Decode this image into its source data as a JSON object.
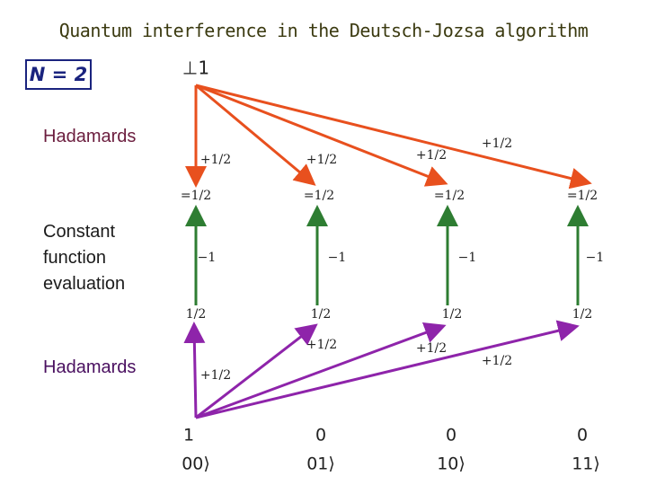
{
  "title": "Quantum interference in the Deutsch-Jozsa algorithm",
  "system_size": "N = 2",
  "top_amplitude": "⊥1",
  "stage_labels": [
    "Hadamards",
    "Constant function evaluation",
    "Hadamards"
  ],
  "upper_weights": [
    "+1/2",
    "+1/2",
    "+1/2",
    "+1/2"
  ],
  "mid_amplitudes": [
    "=1/2",
    "=1/2",
    "=1/2",
    "=1/2"
  ],
  "oracle_phases": [
    "−1",
    "−1",
    "−1",
    "−1"
  ],
  "lower_amplitudes": [
    "1/2",
    "1/2",
    "1/2",
    "1/2"
  ],
  "lower_weights": [
    "+1/2",
    "+1/2",
    "+1/2",
    "+1/2"
  ],
  "final_amplitudes": [
    "1",
    "0",
    "0",
    "0"
  ],
  "basis_states": [
    "00⟩",
    "01⟩",
    "10⟩",
    "11⟩"
  ]
}
